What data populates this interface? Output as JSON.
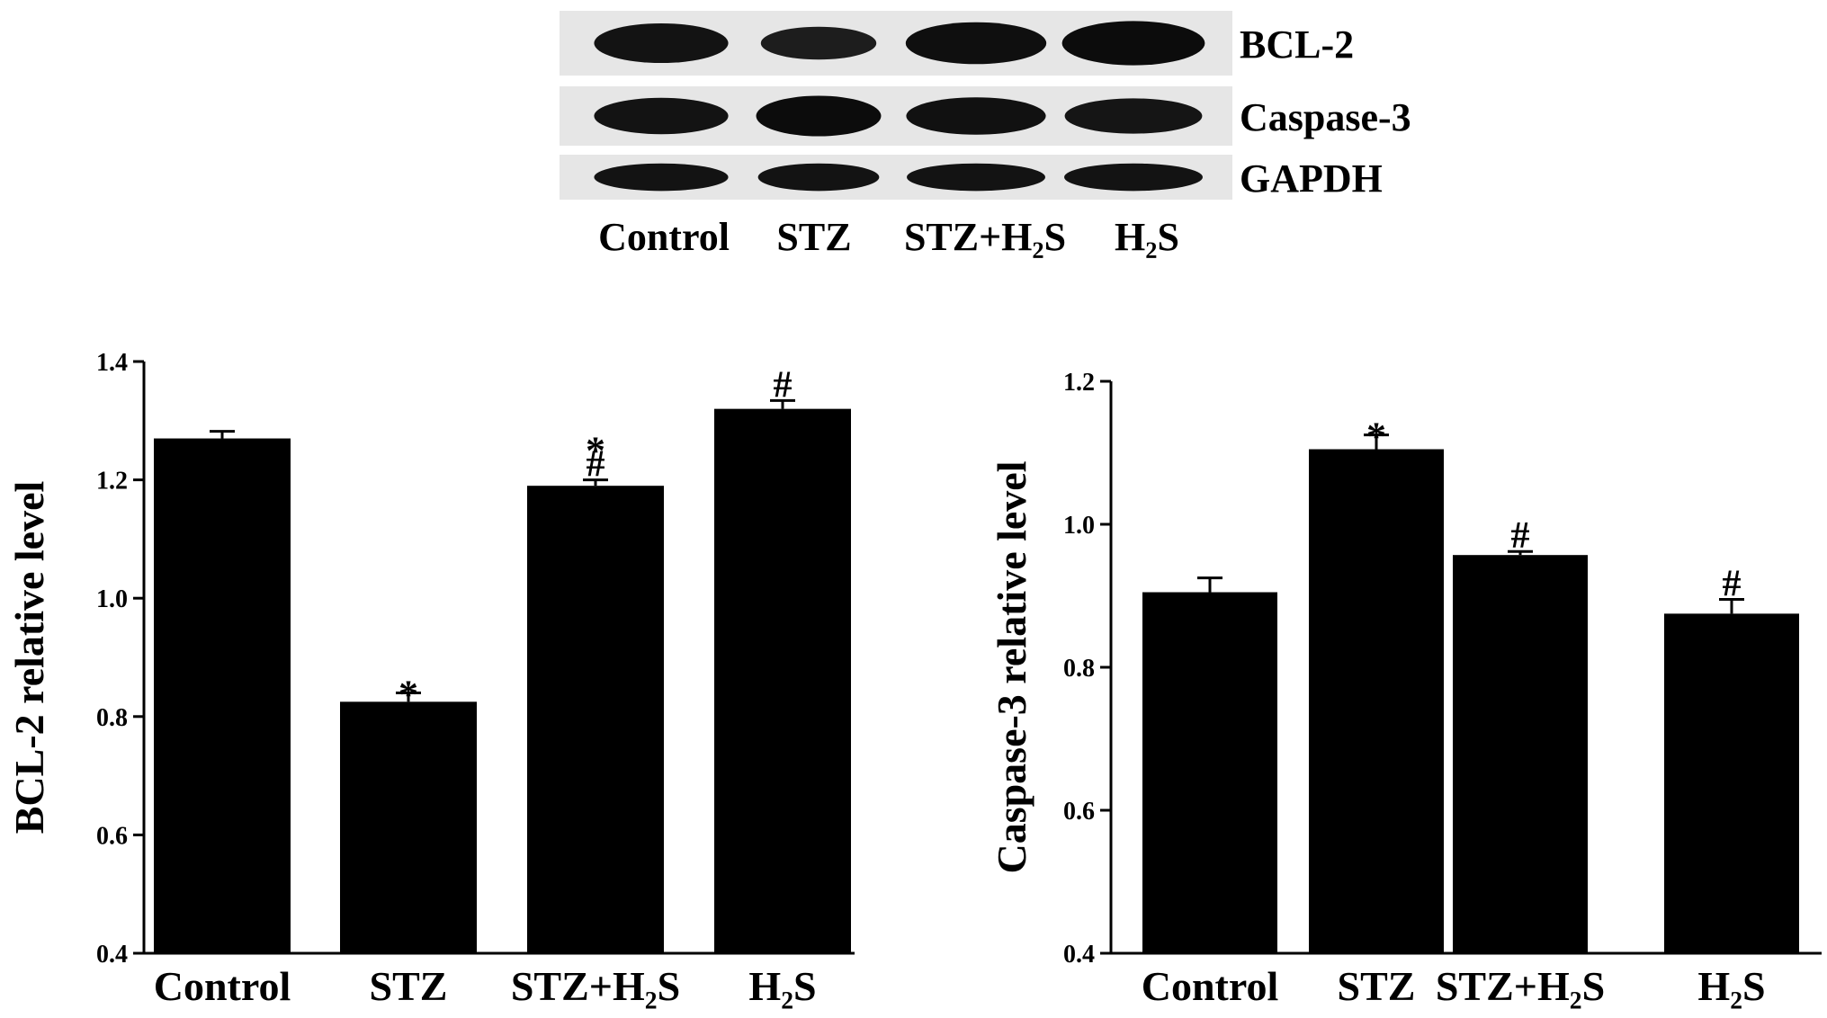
{
  "blot": {
    "lane_labels": [
      "Control",
      "STZ",
      "STZ+H₂S",
      "H₂S"
    ],
    "rows": [
      {
        "label": "BCL-2",
        "band_strength": [
          0.75,
          0.45,
          0.85,
          0.95
        ]
      },
      {
        "label": "Caspase-3",
        "band_strength": [
          0.75,
          0.95,
          0.8,
          0.7
        ]
      },
      {
        "label": "GAPDH",
        "band_strength": [
          0.75,
          0.75,
          0.75,
          0.75
        ]
      }
    ]
  },
  "chart_data": [
    {
      "type": "bar",
      "categories": [
        "Control",
        "STZ",
        "STZ+H₂S",
        "H₂S"
      ],
      "values": [
        1.27,
        0.825,
        1.19,
        1.32
      ],
      "errors": [
        0.012,
        0.015,
        0.01,
        0.014
      ],
      "annotations": [
        "",
        "*",
        "*#",
        "#"
      ],
      "title": "",
      "xlabel": "",
      "ylabel": "BCL-2 relative level",
      "ylim": [
        0.4,
        1.4
      ],
      "yticks": [
        "0.4",
        "0.6",
        "0.8",
        "1.0",
        "1.2",
        "1.4"
      ],
      "bar_color": "#000000",
      "grid": false
    },
    {
      "type": "bar",
      "categories": [
        "Control",
        "STZ",
        "STZ+H₂S",
        "H₂S"
      ],
      "values": [
        0.905,
        1.105,
        0.957,
        0.875
      ],
      "errors": [
        0.02,
        0.02,
        0.005,
        0.02
      ],
      "annotations": [
        "",
        "*",
        "#",
        "#"
      ],
      "title": "",
      "xlabel": "",
      "ylabel": "Caspase-3 relative level",
      "ylim": [
        0.4,
        1.2
      ],
      "yticks": [
        "0.4",
        "0.6",
        "0.8",
        "1.0",
        "1.2"
      ],
      "bar_color": "#000000",
      "grid": false
    }
  ]
}
